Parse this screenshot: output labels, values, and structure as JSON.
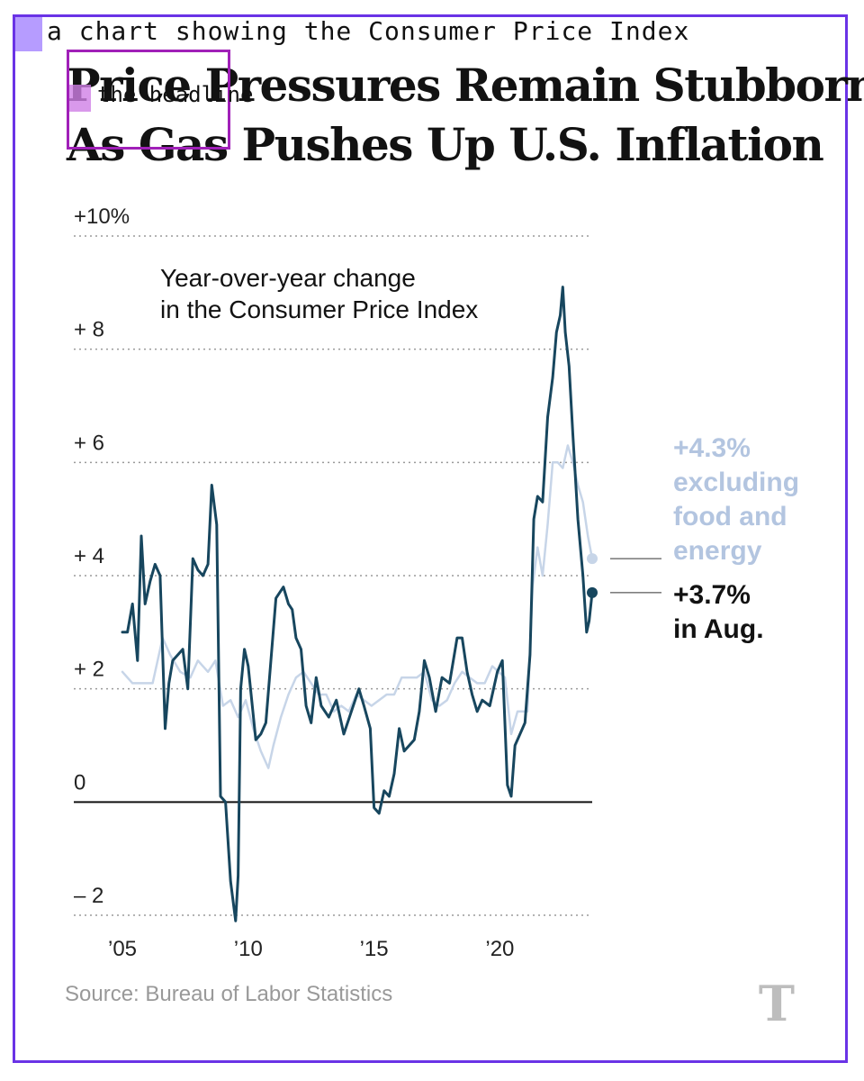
{
  "caption": "a chart showing the Consumer Price Index",
  "headline_label": "the headline",
  "headline": {
    "line1": "Price Pressures Remain Stubborn",
    "line2": "As Gas Pushes Up U.S. Inflation"
  },
  "source": "Source: Bureau of Labor Statistics",
  "colors": {
    "headline_series": "#17465e",
    "core_series": "#c7d5e8",
    "frame": "#6a33e6",
    "highlight_box": "#a020b8"
  },
  "chart_data": {
    "type": "line",
    "subtitle": [
      "Year-over-year change",
      "in the Consumer Price Index"
    ],
    "ylim": [
      -2,
      10
    ],
    "yticks": [
      {
        "value": 10,
        "label": "+10%"
      },
      {
        "value": 8,
        "label": "+ 8"
      },
      {
        "value": 6,
        "label": "+ 6"
      },
      {
        "value": 4,
        "label": "+ 4"
      },
      {
        "value": 2,
        "label": "+ 2"
      },
      {
        "value": 0,
        "label": "0"
      },
      {
        "value": -2,
        "label": "– 2"
      }
    ],
    "xlim": [
      2005,
      2023.67
    ],
    "xticks": [
      {
        "value": 2005,
        "label": "’05"
      },
      {
        "value": 2010,
        "label": "’10"
      },
      {
        "value": 2015,
        "label": "’15"
      },
      {
        "value": 2020,
        "label": "’20"
      }
    ],
    "grid": true,
    "annotations": [
      {
        "series": "core",
        "lines": [
          "+4.3%",
          "excluding",
          "food and",
          "energy"
        ]
      },
      {
        "series": "headline",
        "lines": [
          "+3.7%",
          "in Aug."
        ]
      }
    ],
    "series": [
      {
        "key": "headline",
        "x": [
          2005.0,
          2005.2,
          2005.4,
          2005.6,
          2005.75,
          2005.9,
          2006.1,
          2006.3,
          2006.5,
          2006.7,
          2006.85,
          2007.0,
          2007.2,
          2007.4,
          2007.6,
          2007.8,
          2008.0,
          2008.2,
          2008.4,
          2008.55,
          2008.75,
          2008.9,
          2009.1,
          2009.3,
          2009.5,
          2009.6,
          2009.7,
          2009.85,
          2010.0,
          2010.3,
          2010.5,
          2010.7,
          2010.9,
          2011.1,
          2011.4,
          2011.6,
          2011.75,
          2011.9,
          2012.1,
          2012.3,
          2012.5,
          2012.7,
          2012.9,
          2013.2,
          2013.5,
          2013.8,
          2014.1,
          2014.4,
          2014.6,
          2014.85,
          2015.0,
          2015.2,
          2015.4,
          2015.6,
          2015.8,
          2016.0,
          2016.2,
          2016.4,
          2016.6,
          2016.8,
          2017.0,
          2017.2,
          2017.45,
          2017.7,
          2018.0,
          2018.3,
          2018.5,
          2018.7,
          2018.9,
          2019.1,
          2019.3,
          2019.6,
          2019.9,
          2020.1,
          2020.3,
          2020.45,
          2020.6,
          2020.8,
          2021.0,
          2021.2,
          2021.35,
          2021.5,
          2021.7,
          2021.9,
          2022.1,
          2022.25,
          2022.4,
          2022.5,
          2022.6,
          2022.75,
          2022.9,
          2023.1,
          2023.3,
          2023.45,
          2023.55,
          2023.67
        ],
        "values": [
          3.0,
          3.0,
          3.5,
          2.5,
          4.7,
          3.5,
          3.9,
          4.2,
          4.0,
          1.3,
          2.1,
          2.5,
          2.6,
          2.7,
          2.0,
          4.3,
          4.1,
          4.0,
          4.2,
          5.6,
          4.9,
          0.1,
          0.0,
          -1.4,
          -2.1,
          -1.3,
          2.0,
          2.7,
          2.4,
          1.1,
          1.2,
          1.4,
          2.5,
          3.6,
          3.8,
          3.5,
          3.4,
          2.9,
          2.7,
          1.7,
          1.4,
          2.2,
          1.7,
          1.5,
          1.8,
          1.2,
          1.6,
          2.0,
          1.7,
          1.3,
          -0.1,
          -0.2,
          0.2,
          0.1,
          0.5,
          1.3,
          0.9,
          1.0,
          1.1,
          1.6,
          2.5,
          2.2,
          1.6,
          2.2,
          2.1,
          2.9,
          2.9,
          2.3,
          1.9,
          1.6,
          1.8,
          1.7,
          2.3,
          2.5,
          0.3,
          0.1,
          1.0,
          1.2,
          1.4,
          2.6,
          5.0,
          5.4,
          5.3,
          6.8,
          7.5,
          8.3,
          8.6,
          9.1,
          8.3,
          7.7,
          6.5,
          5.0,
          4.0,
          3.0,
          3.2,
          3.7
        ]
      },
      {
        "key": "core",
        "x": [
          2005.0,
          2005.4,
          2005.8,
          2006.2,
          2006.6,
          2006.9,
          2007.3,
          2007.7,
          2008.0,
          2008.4,
          2008.7,
          2009.0,
          2009.3,
          2009.6,
          2009.9,
          2010.2,
          2010.5,
          2010.8,
          2011.0,
          2011.3,
          2011.6,
          2011.9,
          2012.2,
          2012.5,
          2012.8,
          2013.1,
          2013.4,
          2013.7,
          2014.0,
          2014.3,
          2014.6,
          2014.9,
          2015.2,
          2015.5,
          2015.8,
          2016.1,
          2016.4,
          2016.7,
          2017.0,
          2017.3,
          2017.6,
          2017.9,
          2018.2,
          2018.5,
          2018.8,
          2019.1,
          2019.4,
          2019.7,
          2019.95,
          2020.2,
          2020.45,
          2020.7,
          2020.9,
          2021.1,
          2021.3,
          2021.5,
          2021.7,
          2021.9,
          2022.1,
          2022.3,
          2022.5,
          2022.7,
          2022.9,
          2023.1,
          2023.3,
          2023.5,
          2023.67
        ],
        "values": [
          2.3,
          2.1,
          2.1,
          2.1,
          2.9,
          2.6,
          2.3,
          2.2,
          2.5,
          2.3,
          2.5,
          1.7,
          1.8,
          1.5,
          1.8,
          1.3,
          0.9,
          0.6,
          1.0,
          1.5,
          1.9,
          2.2,
          2.3,
          2.1,
          1.9,
          1.9,
          1.6,
          1.7,
          1.6,
          1.9,
          1.8,
          1.7,
          1.8,
          1.9,
          1.9,
          2.2,
          2.2,
          2.2,
          2.3,
          1.8,
          1.7,
          1.8,
          2.1,
          2.3,
          2.2,
          2.1,
          2.1,
          2.4,
          2.3,
          2.2,
          1.2,
          1.6,
          1.6,
          1.6,
          3.8,
          4.5,
          4.0,
          4.9,
          6.0,
          6.0,
          5.9,
          6.3,
          6.0,
          5.6,
          5.3,
          4.7,
          4.3
        ]
      }
    ]
  }
}
